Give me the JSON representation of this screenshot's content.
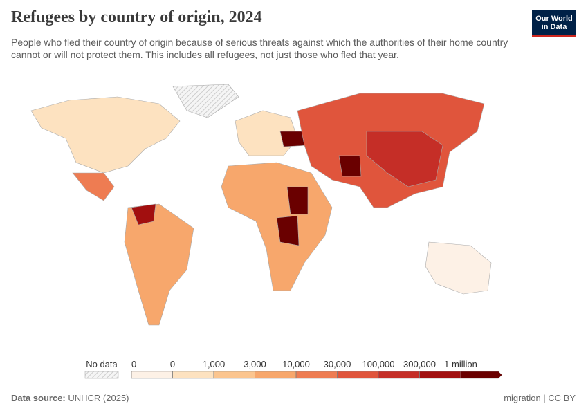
{
  "header": {
    "title": "Refugees by country of origin, 2024",
    "subtitle": "People who fled their country of origin because of serious threats against which the authorities of their home country cannot or will not protect them. This includes all refugees, not just those who fled that year.",
    "logo": [
      "Our World",
      "in Data"
    ]
  },
  "legend": {
    "no_data": "No data",
    "ticks": [
      0,
      0,
      {
        "value": 1000,
        "label": "1,000"
      },
      {
        "value": 3000,
        "label": "3,000"
      },
      {
        "value": 10000,
        "label": "10,000"
      },
      {
        "value": 30000,
        "label": "30,000"
      },
      {
        "value": 100000,
        "label": "100,000"
      },
      {
        "value": 300000,
        "label": "300,000"
      },
      {
        "value": 1000000,
        "label": "1 million"
      }
    ],
    "colors": [
      "#fdf1e6",
      "#fde2c0",
      "#fbc58f",
      "#f7a76c",
      "#ee7c52",
      "#e0553c",
      "#c52e27",
      "#a20f0f",
      "#6a0000"
    ]
  },
  "footer": {
    "source_label": "Data source:",
    "source": "UNHCR (2025)",
    "right": "migration | CC BY"
  }
}
